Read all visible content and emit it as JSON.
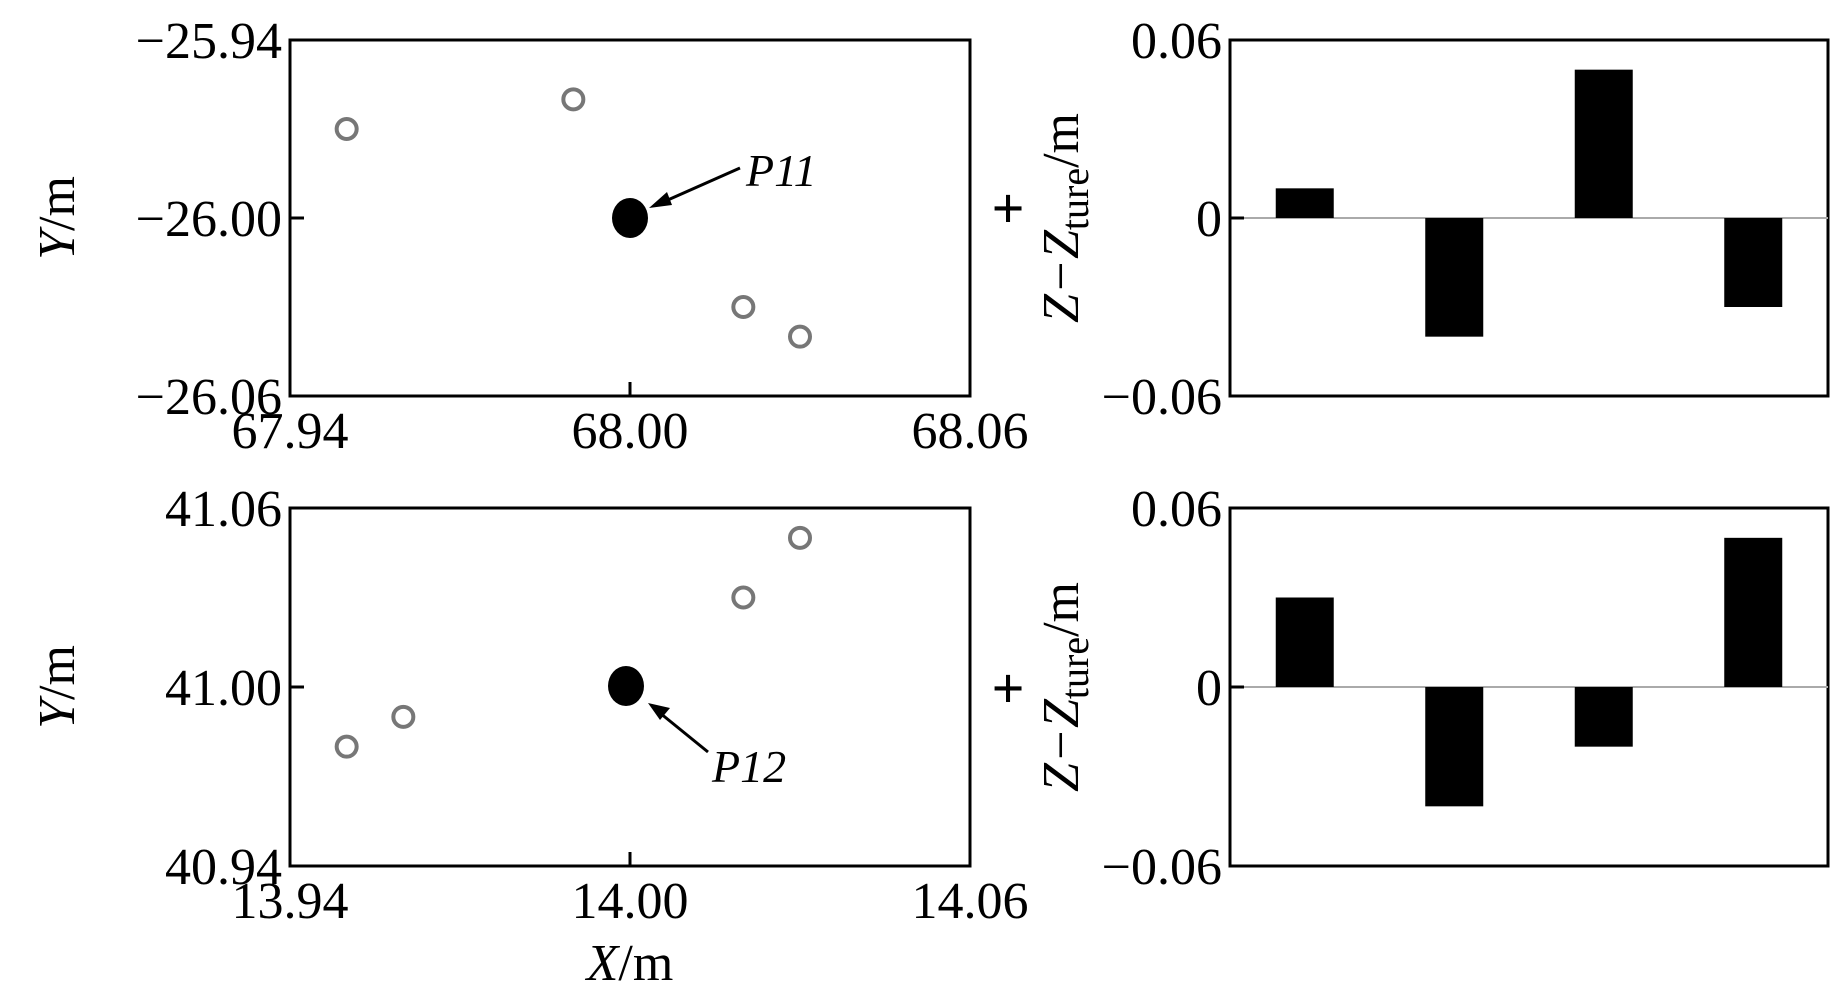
{
  "plus_sign": "+",
  "chart_data": [
    {
      "type": "scatter",
      "id": "s1",
      "xlim": [
        67.94,
        68.06
      ],
      "ylim": [
        -26.06,
        -25.94
      ],
      "xticks": [
        67.94,
        68.0,
        68.06
      ],
      "yticks": [
        -26.06,
        -26.0,
        -25.94
      ],
      "xtick_labels": [
        "67.94",
        "68.00",
        "68.06"
      ],
      "ytick_labels": [
        "−26.06",
        "−26.00",
        "−25.94"
      ],
      "ylabel_main": "Y",
      "ylabel_unit": "/m",
      "xlabel_main": "",
      "xlabel_unit": "",
      "target": {
        "label": "P11",
        "x": 68.0,
        "y": -26.0
      },
      "points": [
        {
          "x": 67.95,
          "y": -25.97
        },
        {
          "x": 67.99,
          "y": -25.96
        },
        {
          "x": 68.02,
          "y": -26.03
        },
        {
          "x": 68.03,
          "y": -26.04
        }
      ],
      "grid": false
    },
    {
      "type": "bar",
      "id": "b1",
      "ylim": [
        -0.06,
        0.06
      ],
      "yticks": [
        -0.06,
        0,
        0.06
      ],
      "ytick_labels": [
        "−0.06",
        "0",
        "0.06"
      ],
      "ylabel_main": "Z−Z",
      "ylabel_sub": "ture",
      "ylabel_unit": "/m",
      "values": [
        0.01,
        -0.04,
        0.05,
        -0.03
      ],
      "grid": false
    },
    {
      "type": "scatter",
      "id": "s2",
      "xlim": [
        13.94,
        14.06
      ],
      "ylim": [
        40.94,
        41.06
      ],
      "xticks": [
        13.94,
        14.0,
        14.06
      ],
      "yticks": [
        40.94,
        41.0,
        41.06
      ],
      "xtick_labels": [
        "13.94",
        "14.00",
        "14.06"
      ],
      "ytick_labels": [
        "40.94",
        "41.00",
        "41.06"
      ],
      "ylabel_main": "Y",
      "ylabel_unit": "/m",
      "xlabel_main": "X",
      "xlabel_unit": "/m",
      "target": {
        "label": "P12",
        "x": 14.0,
        "y": 41.0
      },
      "points": [
        {
          "x": 13.95,
          "y": 40.98
        },
        {
          "x": 13.96,
          "y": 40.99
        },
        {
          "x": 14.02,
          "y": 41.03
        },
        {
          "x": 14.03,
          "y": 41.05
        }
      ],
      "grid": false
    },
    {
      "type": "bar",
      "id": "b2",
      "ylim": [
        -0.06,
        0.06
      ],
      "yticks": [
        -0.06,
        0,
        0.06
      ],
      "ytick_labels": [
        "−0.06",
        "0",
        "0.06"
      ],
      "ylabel_main": "Z−Z",
      "ylabel_sub": "ture",
      "ylabel_unit": "/m",
      "values": [
        0.03,
        -0.04,
        -0.02,
        0.05
      ],
      "grid": false
    }
  ]
}
